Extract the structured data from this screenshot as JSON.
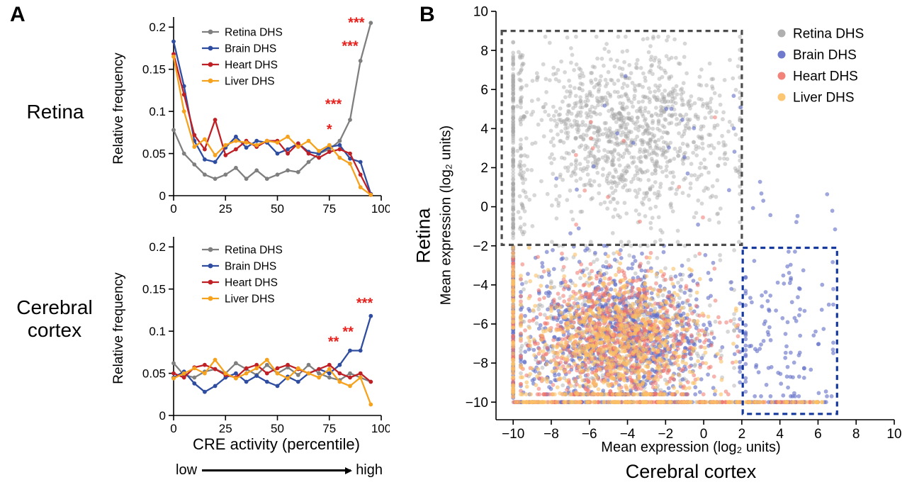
{
  "figure": {
    "background": "#ffffff"
  },
  "panelA": {
    "label": "A",
    "xlabel": "CRE activity (percentile)",
    "scale_low": "low",
    "scale_high": "high"
  },
  "panelB": {
    "label": "B"
  },
  "colors": {
    "significance": "#e8211d",
    "axis": "#000000",
    "box_gray": "#4d4d4d",
    "box_blue": "#16399e"
  },
  "chart_data": [
    {
      "type": "line",
      "title": "Retina",
      "ylabel": "Relative frequency",
      "xlim": [
        0,
        100
      ],
      "ylim": [
        0,
        0.212
      ],
      "xticks": [
        0,
        25,
        50,
        75,
        100
      ],
      "yticks": [
        0,
        0.05,
        0.1,
        0.15,
        0.2
      ],
      "x": [
        0,
        5,
        10,
        15,
        20,
        25,
        30,
        35,
        40,
        45,
        50,
        55,
        60,
        65,
        70,
        75,
        80,
        85,
        90,
        95
      ],
      "series": [
        {
          "name": "Retina DHS",
          "color": "#7f7f7f",
          "values": [
            0.078,
            0.05,
            0.037,
            0.025,
            0.02,
            0.025,
            0.033,
            0.02,
            0.03,
            0.02,
            0.025,
            0.03,
            0.028,
            0.04,
            0.05,
            0.055,
            0.065,
            0.09,
            0.16,
            0.205
          ]
        },
        {
          "name": "Brain DHS",
          "color": "#2f4da0",
          "values": [
            0.183,
            0.13,
            0.065,
            0.043,
            0.04,
            0.057,
            0.07,
            0.057,
            0.065,
            0.063,
            0.05,
            0.055,
            0.062,
            0.052,
            0.05,
            0.058,
            0.06,
            0.044,
            0.04,
            0.002
          ]
        },
        {
          "name": "Heart DHS",
          "color": "#bf2026",
          "values": [
            0.168,
            0.12,
            0.072,
            0.055,
            0.09,
            0.048,
            0.055,
            0.065,
            0.058,
            0.065,
            0.065,
            0.05,
            0.062,
            0.05,
            0.045,
            0.052,
            0.055,
            0.05,
            0.025,
            0.001
          ]
        },
        {
          "name": "Liver DHS",
          "color": "#f6a21d",
          "values": [
            0.165,
            0.1,
            0.058,
            0.067,
            0.048,
            0.06,
            0.065,
            0.063,
            0.06,
            0.065,
            0.063,
            0.07,
            0.058,
            0.065,
            0.053,
            0.06,
            0.045,
            0.038,
            0.01,
            0.001
          ]
        }
      ],
      "annotations": [
        {
          "text": "***",
          "x": 88,
          "y": 0.2
        },
        {
          "text": "***",
          "x": 85,
          "y": 0.172
        },
        {
          "text": "***",
          "x": 77,
          "y": 0.103
        },
        {
          "text": "*",
          "x": 75,
          "y": 0.073
        }
      ]
    },
    {
      "type": "line",
      "title": "Cerebral cortex",
      "ylabel": "Relative frequency",
      "xlabel": "CRE activity (percentile)",
      "xlim": [
        0,
        100
      ],
      "ylim": [
        0,
        0.212
      ],
      "xticks": [
        0,
        25,
        50,
        75,
        100
      ],
      "yticks": [
        0,
        0.05,
        0.1,
        0.15,
        0.2
      ],
      "x": [
        0,
        5,
        10,
        15,
        20,
        25,
        30,
        35,
        40,
        45,
        50,
        55,
        60,
        65,
        70,
        75,
        80,
        85,
        90,
        95
      ],
      "series": [
        {
          "name": "Retina DHS",
          "color": "#7f7f7f",
          "values": [
            0.062,
            0.048,
            0.045,
            0.052,
            0.055,
            0.05,
            0.062,
            0.055,
            0.048,
            0.06,
            0.05,
            0.057,
            0.048,
            0.06,
            0.05,
            0.045,
            0.042,
            0.05,
            0.045,
            0.04
          ]
        },
        {
          "name": "Brain DHS",
          "color": "#2f4da0",
          "values": [
            0.045,
            0.052,
            0.038,
            0.028,
            0.035,
            0.045,
            0.05,
            0.04,
            0.047,
            0.04,
            0.035,
            0.046,
            0.04,
            0.05,
            0.055,
            0.05,
            0.06,
            0.077,
            0.077,
            0.118
          ]
        },
        {
          "name": "Heart DHS",
          "color": "#bf2026",
          "values": [
            0.05,
            0.045,
            0.057,
            0.06,
            0.055,
            0.048,
            0.045,
            0.056,
            0.06,
            0.05,
            0.056,
            0.06,
            0.055,
            0.05,
            0.055,
            0.06,
            0.05,
            0.045,
            0.05,
            0.04
          ]
        },
        {
          "name": "Liver DHS",
          "color": "#f6a21d",
          "values": [
            0.044,
            0.05,
            0.056,
            0.05,
            0.066,
            0.05,
            0.044,
            0.05,
            0.056,
            0.066,
            0.05,
            0.044,
            0.056,
            0.05,
            0.045,
            0.055,
            0.04,
            0.035,
            0.045,
            0.013
          ]
        }
      ],
      "annotations": [
        {
          "text": "**",
          "x": 77,
          "y": 0.082
        },
        {
          "text": "**",
          "x": 84,
          "y": 0.094
        },
        {
          "text": "***",
          "x": 92,
          "y": 0.128
        }
      ]
    },
    {
      "type": "scatter",
      "xlabel": "Mean expression (log₂ units)",
      "xlabel_sub": "Cerebral cortex",
      "ylabel": "Mean expression (log₂ units)",
      "ylabel_sub": "Retina",
      "xlim": [
        -10.9,
        10
      ],
      "ylim": [
        -10.9,
        10
      ],
      "xticks": [
        -10,
        -8,
        -6,
        -4,
        -2,
        0,
        2,
        4,
        6,
        8,
        10
      ],
      "yticks": [
        -10,
        -8,
        -6,
        -4,
        -2,
        0,
        2,
        4,
        6,
        8,
        10
      ],
      "seed": 1337,
      "legend": [
        {
          "name": "Retina DHS",
          "color": "#a6a6a6",
          "opacity": 0.45
        },
        {
          "name": "Brain DHS",
          "color": "#5f6cc7",
          "opacity": 0.6
        },
        {
          "name": "Heart DHS",
          "color": "#f0756c",
          "opacity": 0.55
        },
        {
          "name": "Liver DHS",
          "color": "#fcc064",
          "opacity": 0.6
        }
      ],
      "boxes": [
        {
          "color": "#4d4d4d",
          "x0": -10.6,
          "y0": -1.95,
          "x1": 2.0,
          "y1": 9.0
        },
        {
          "color": "#16399e",
          "x0": 2.05,
          "y0": -10.6,
          "x1": 7.0,
          "y1": -2.1
        }
      ],
      "clusters": [
        {
          "series": 0,
          "n": 1100,
          "x": {
            "type": "normal",
            "mean": -3.8,
            "sd": 2.8,
            "min": -9.6,
            "max": 1.9
          },
          "y": {
            "type": "normal",
            "mean": 3.7,
            "sd": 2.1,
            "min": -1.8,
            "max": 8.7
          }
        },
        {
          "series": 0,
          "n": 150,
          "x": {
            "type": "const",
            "value": -10
          },
          "y": {
            "type": "uniform",
            "min": -1.8,
            "max": 8.8
          }
        },
        {
          "series": 0,
          "n": 60,
          "x": {
            "type": "normal",
            "mean": -9.55,
            "sd": 0.12,
            "min": -9.8,
            "max": -9.3
          },
          "y": {
            "type": "uniform",
            "min": -1.5,
            "max": 8.0
          }
        },
        {
          "series": 0,
          "n": 480,
          "x": {
            "type": "normal",
            "mean": -4.2,
            "sd": 2.6,
            "min": -9.6,
            "max": 1.6
          },
          "y": {
            "type": "normal",
            "mean": -6.3,
            "sd": 2.0,
            "min": -9.6,
            "max": -2.0
          }
        },
        {
          "series": 1,
          "n": 950,
          "x": {
            "type": "normal",
            "mean": -4.3,
            "sd": 2.5,
            "min": -9.6,
            "max": 1.9
          },
          "y": {
            "type": "normal",
            "mean": -6.6,
            "sd": 1.9,
            "min": -9.6,
            "max": -2.0
          }
        },
        {
          "series": 2,
          "n": 820,
          "x": {
            "type": "normal",
            "mean": -4.5,
            "sd": 2.4,
            "min": -9.6,
            "max": 1.8
          },
          "y": {
            "type": "normal",
            "mean": -6.8,
            "sd": 1.8,
            "min": -9.6,
            "max": -2.0
          }
        },
        {
          "series": 3,
          "n": 720,
          "x": {
            "type": "normal",
            "mean": -4.6,
            "sd": 2.3,
            "min": -9.6,
            "max": 1.7
          },
          "y": {
            "type": "normal",
            "mean": -7.0,
            "sd": 1.7,
            "min": -9.6,
            "max": -2.1
          }
        },
        {
          "series": 1,
          "n": 120,
          "x": {
            "type": "normal",
            "mean": 4.0,
            "sd": 1.4,
            "min": 2.2,
            "max": 6.8
          },
          "y": {
            "type": "normal",
            "mean": -6.8,
            "sd": 2.2,
            "min": -9.7,
            "max": -2.3
          }
        },
        {
          "series": 1,
          "n": 22,
          "x": {
            "type": "uniform",
            "min": -8.0,
            "max": 2.0
          },
          "y": {
            "type": "uniform",
            "min": -1.5,
            "max": 7.5
          }
        },
        {
          "series": 2,
          "n": 12,
          "x": {
            "type": "uniform",
            "min": -7.0,
            "max": 1.0
          },
          "y": {
            "type": "uniform",
            "min": -1.0,
            "max": 5.0
          }
        },
        {
          "series": 1,
          "n": 10,
          "x": {
            "type": "uniform",
            "min": 2.5,
            "max": 7.0
          },
          "y": {
            "type": "uniform",
            "min": -1.5,
            "max": 1.5
          }
        },
        {
          "series": 0,
          "n": 50,
          "x": {
            "type": "uniform",
            "min": -10.0,
            "max": 2.0
          },
          "y": {
            "type": "const",
            "value": -10
          }
        },
        {
          "series": 1,
          "n": 110,
          "x": {
            "type": "uniform",
            "min": -10.0,
            "max": 6.8
          },
          "y": {
            "type": "const",
            "value": -10
          }
        },
        {
          "series": 2,
          "n": 130,
          "x": {
            "type": "uniform",
            "min": -10.0,
            "max": 6.0
          },
          "y": {
            "type": "const",
            "value": -10
          }
        },
        {
          "series": 3,
          "n": 150,
          "x": {
            "type": "uniform",
            "min": -10.0,
            "max": 6.5
          },
          "y": {
            "type": "const",
            "value": -10
          }
        },
        {
          "series": 0,
          "n": 40,
          "x": {
            "type": "const",
            "value": -10
          },
          "y": {
            "type": "uniform",
            "min": -9.8,
            "max": -2.0
          }
        },
        {
          "series": 1,
          "n": 60,
          "x": {
            "type": "const",
            "value": -10
          },
          "y": {
            "type": "uniform",
            "min": -9.8,
            "max": -2.0
          }
        },
        {
          "series": 2,
          "n": 60,
          "x": {
            "type": "const",
            "value": -10
          },
          "y": {
            "type": "uniform",
            "min": -9.8,
            "max": -2.0
          }
        },
        {
          "series": 3,
          "n": 60,
          "x": {
            "type": "const",
            "value": -10
          },
          "y": {
            "type": "uniform",
            "min": -9.8,
            "max": -2.0
          }
        }
      ]
    }
  ]
}
